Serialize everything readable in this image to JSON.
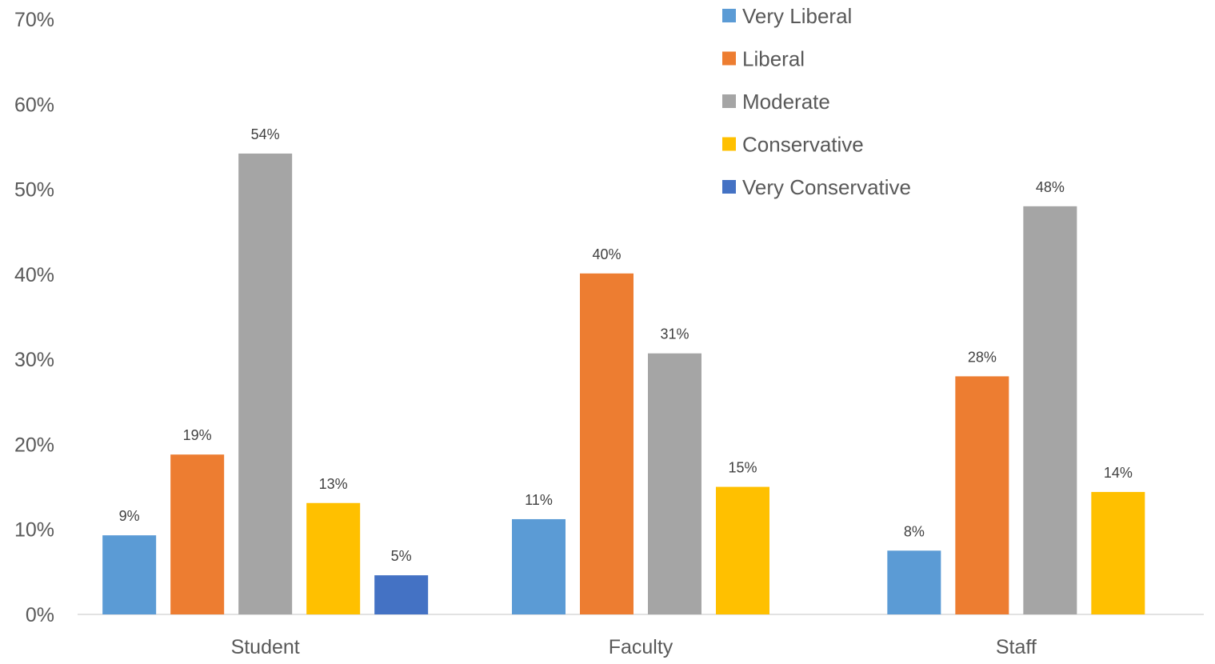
{
  "chart_data": {
    "type": "bar",
    "categories": [
      "Student",
      "Faculty",
      "Staff"
    ],
    "series": [
      {
        "name": "Very Liberal",
        "color": "#5B9BD5",
        "values": [
          9.3,
          11.2,
          7.5
        ],
        "labels": [
          "9%",
          "11%",
          "8%"
        ]
      },
      {
        "name": "Liberal",
        "color": "#ED7D31",
        "values": [
          18.8,
          40.1,
          28.0
        ],
        "labels": [
          "19%",
          "40%",
          "28%"
        ]
      },
      {
        "name": "Moderate",
        "color": "#A5A5A5",
        "values": [
          54.2,
          30.7,
          48.0
        ],
        "labels": [
          "54%",
          "31%",
          "48%"
        ]
      },
      {
        "name": "Conservative",
        "color": "#FFC000",
        "values": [
          13.1,
          15.0,
          14.4
        ],
        "labels": [
          "13%",
          "15%",
          "14%"
        ]
      },
      {
        "name": "Very Conservative",
        "color": "#4472C4",
        "values": [
          4.6,
          null,
          null
        ],
        "labels": [
          "5%",
          "",
          ""
        ]
      }
    ],
    "yticks": [
      "0%",
      "10%",
      "20%",
      "30%",
      "40%",
      "50%",
      "60%",
      "70%"
    ],
    "ylim": [
      0,
      70
    ],
    "grid": false,
    "legend_position": "top-right"
  }
}
